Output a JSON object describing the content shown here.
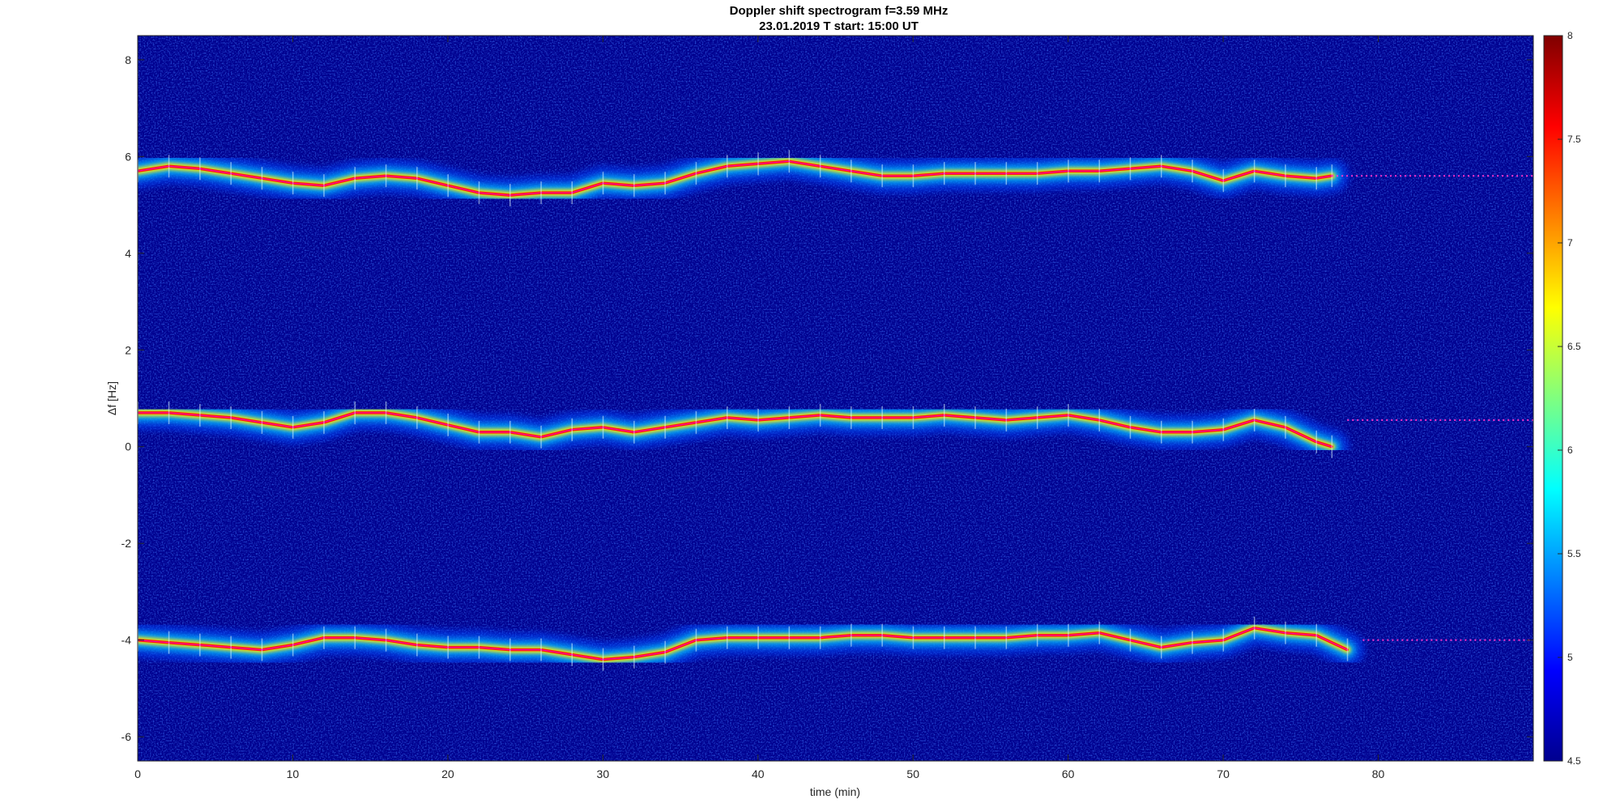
{
  "chart_data": {
    "type": "heatmap",
    "title": "Doppler shift spectrogram f=3.59 MHz",
    "subtitle": "23.01.2019   T start: 15:00 UT",
    "xlabel": "time (min)",
    "ylabel": "Δf [Hz]",
    "xlim": [
      0,
      90
    ],
    "ylim": [
      -6.5,
      8.5
    ],
    "x_ticks": [
      0,
      10,
      20,
      30,
      40,
      50,
      60,
      70,
      80
    ],
    "y_ticks": [
      -6,
      -4,
      -2,
      0,
      2,
      4,
      6,
      8
    ],
    "colorbar": {
      "colormap": "jet",
      "range": [
        4.5,
        8
      ],
      "ticks": [
        4.5,
        5,
        5.5,
        6,
        6.5,
        7,
        7.5,
        8
      ]
    },
    "grid": false,
    "series": [
      {
        "x": [
          0,
          2,
          4,
          6,
          8,
          10,
          12,
          14,
          16,
          18,
          20,
          22,
          24,
          26,
          28,
          30,
          32,
          34,
          36,
          38,
          40,
          42,
          44,
          46,
          48,
          50,
          52,
          54,
          56,
          58,
          60,
          62,
          64,
          66,
          68,
          70,
          72,
          74,
          76,
          77
        ],
        "values": [
          5.7,
          5.8,
          5.75,
          5.65,
          5.55,
          5.45,
          5.4,
          5.55,
          5.6,
          5.55,
          5.4,
          5.25,
          5.2,
          5.25,
          5.25,
          5.45,
          5.4,
          5.45,
          5.65,
          5.8,
          5.85,
          5.9,
          5.8,
          5.7,
          5.6,
          5.6,
          5.65,
          5.65,
          5.65,
          5.65,
          5.7,
          5.7,
          5.75,
          5.8,
          5.7,
          5.5,
          5.7,
          5.6,
          5.55,
          5.6
        ]
      },
      {
        "x": [
          0,
          2,
          4,
          6,
          8,
          10,
          12,
          14,
          16,
          18,
          20,
          22,
          24,
          26,
          28,
          30,
          32,
          34,
          36,
          38,
          40,
          42,
          44,
          46,
          48,
          50,
          52,
          54,
          56,
          58,
          60,
          62,
          64,
          66,
          68,
          70,
          72,
          74,
          76,
          77
        ],
        "values": [
          0.7,
          0.7,
          0.65,
          0.6,
          0.5,
          0.4,
          0.5,
          0.7,
          0.7,
          0.6,
          0.45,
          0.3,
          0.3,
          0.2,
          0.35,
          0.4,
          0.3,
          0.4,
          0.5,
          0.6,
          0.55,
          0.6,
          0.65,
          0.6,
          0.6,
          0.6,
          0.65,
          0.6,
          0.55,
          0.6,
          0.65,
          0.55,
          0.4,
          0.3,
          0.3,
          0.35,
          0.55,
          0.4,
          0.1,
          0.0
        ]
      },
      {
        "x": [
          0,
          2,
          4,
          6,
          8,
          10,
          12,
          14,
          16,
          18,
          20,
          22,
          24,
          26,
          28,
          30,
          32,
          34,
          36,
          38,
          40,
          42,
          44,
          46,
          48,
          50,
          52,
          54,
          56,
          58,
          60,
          62,
          64,
          66,
          68,
          70,
          72,
          74,
          76,
          78
        ],
        "values": [
          -4.0,
          -4.05,
          -4.1,
          -4.15,
          -4.2,
          -4.1,
          -3.95,
          -3.95,
          -4.0,
          -4.1,
          -4.15,
          -4.15,
          -4.2,
          -4.2,
          -4.3,
          -4.4,
          -4.35,
          -4.25,
          -4.0,
          -3.95,
          -3.95,
          -3.95,
          -3.95,
          -3.9,
          -3.9,
          -3.95,
          -3.95,
          -3.95,
          -3.95,
          -3.9,
          -3.9,
          -3.85,
          -4.0,
          -4.15,
          -4.05,
          -4.0,
          -3.75,
          -3.85,
          -3.9,
          -4.2
        ]
      }
    ],
    "annotations": [
      {
        "x_from": 77,
        "x_to": 90,
        "value": 5.6
      },
      {
        "x_from": 78,
        "x_to": 90,
        "value": 0.55
      },
      {
        "x_from": 79,
        "x_to": 90,
        "value": -4.0
      }
    ]
  }
}
